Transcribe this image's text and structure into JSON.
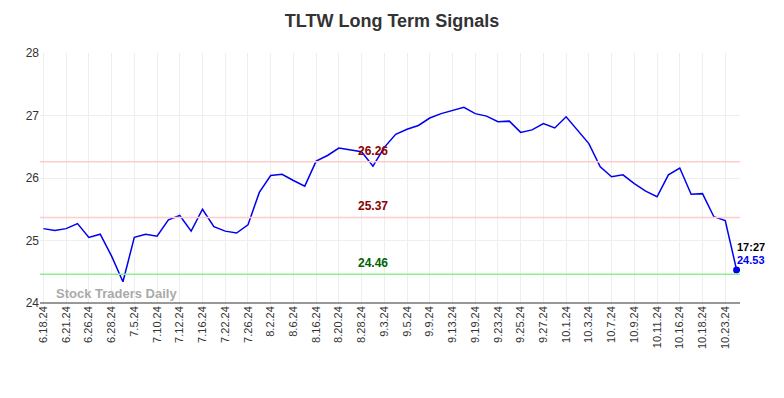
{
  "chart_data": {
    "type": "line",
    "title": "TLTW Long Term Signals",
    "categories": [
      "6.18.24",
      null,
      "6.21.24",
      null,
      "6.26.24",
      null,
      "6.28.24",
      null,
      "7.5.24",
      null,
      "7.10.24",
      null,
      "7.12.24",
      null,
      "7.16.24",
      null,
      "7.22.24",
      null,
      "7.26.24",
      null,
      "8.2.24",
      null,
      "8.6.24",
      null,
      "8.16.24",
      null,
      "8.20.24",
      null,
      "8.28.24",
      null,
      "9.3.24",
      null,
      "9.5.24",
      null,
      "9.9.24",
      null,
      "9.13.24",
      null,
      "9.19.24",
      null,
      "9.23.24",
      null,
      "9.25.24",
      null,
      "9.27.24",
      null,
      "10.1.24",
      null,
      "10.3.24",
      null,
      "10.7.24",
      null,
      "10.9.24",
      null,
      "10.11.24",
      null,
      "10.16.24",
      null,
      "10.18.24",
      null,
      "10.23.24",
      null
    ],
    "values": [
      25.19,
      25.16,
      25.19,
      25.27,
      25.05,
      25.1,
      24.75,
      24.34,
      25.05,
      25.1,
      25.07,
      25.33,
      25.4,
      25.15,
      25.5,
      25.22,
      25.15,
      25.12,
      25.25,
      25.77,
      26.04,
      26.06,
      25.96,
      25.87,
      26.27,
      26.36,
      26.48,
      26.45,
      26.42,
      26.19,
      26.49,
      26.7,
      26.78,
      26.84,
      26.96,
      27.03,
      27.08,
      27.13,
      27.03,
      26.99,
      26.9,
      26.91,
      26.73,
      26.77,
      26.87,
      26.8,
      26.98,
      26.77,
      26.55,
      26.18,
      26.02,
      26.05,
      25.91,
      25.79,
      25.7,
      26.05,
      26.16,
      25.74,
      25.75,
      25.38,
      25.32,
      24.53
    ],
    "color": "#0000ee",
    "levels": [
      {
        "value": 26.26,
        "color": "#ffcccc",
        "label_color": "#8b0000"
      },
      {
        "value": 25.37,
        "color": "#ffcccc",
        "label_color": "#8b0000"
      },
      {
        "value": 24.46,
        "color": "#90ee90",
        "label_color": "#006400"
      }
    ],
    "annotations": [
      "17:27",
      "24.53"
    ],
    "watermark": "Stock Traders Daily",
    "ylim": [
      24,
      28
    ],
    "yticks": [
      24,
      25,
      26,
      27,
      28
    ],
    "grid": true
  }
}
